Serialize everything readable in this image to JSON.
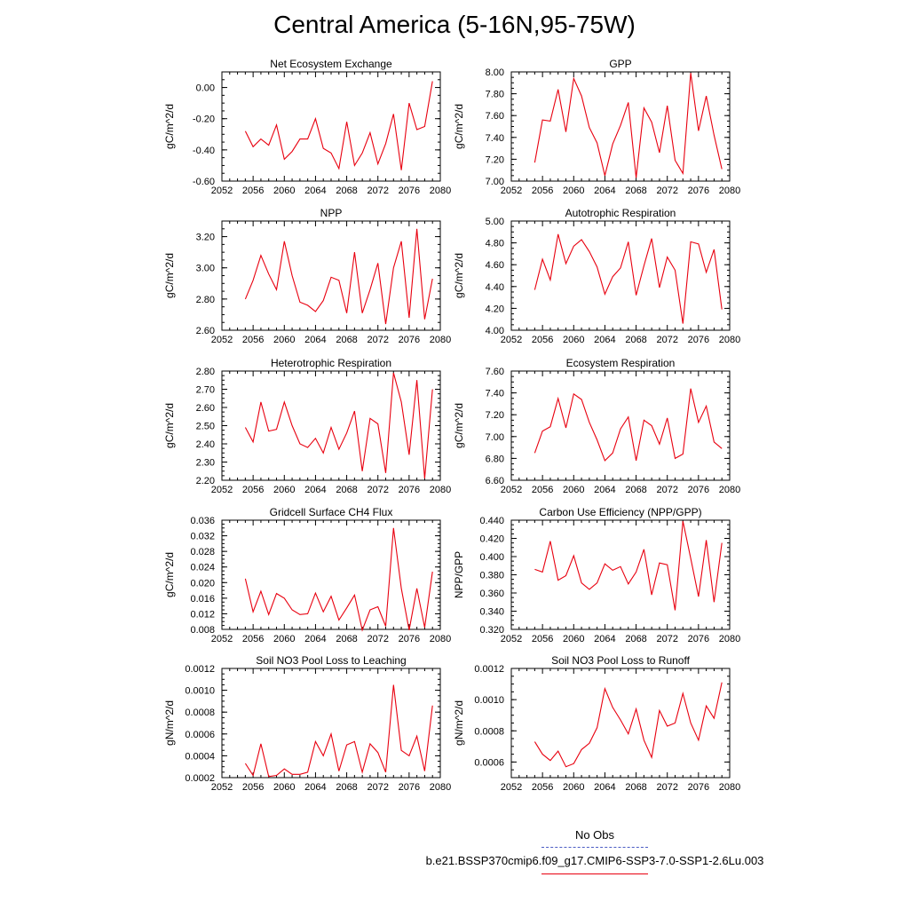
{
  "title": "Central America (5-16N,95-75W)",
  "line_color": "#e8000f",
  "obs_color": "#4b5cc4",
  "legend": {
    "obs_label": "No Obs",
    "run_label": "b.e21.BSSP370cmip6.f09_g17.CMIP6-SSP3-7.0-SSP1-2.6Lu.003"
  },
  "chart_data": [
    {
      "type": "line",
      "title": "Net Ecosystem Exchange",
      "ylabel": "gC/m^2/d",
      "xlim": [
        2052,
        2080
      ],
      "xticks": [
        2052,
        2056,
        2060,
        2064,
        2068,
        2072,
        2076,
        2080
      ],
      "ylim": [
        -0.6,
        0.1
      ],
      "yticks": [
        -0.6,
        -0.4,
        -0.2,
        0.0
      ],
      "ydec": 2,
      "x": [
        2055,
        2056,
        2057,
        2058,
        2059,
        2060,
        2061,
        2062,
        2063,
        2064,
        2065,
        2066,
        2067,
        2068,
        2069,
        2070,
        2071,
        2072,
        2073,
        2074,
        2075,
        2076,
        2077,
        2078,
        2079
      ],
      "y": [
        -0.28,
        -0.38,
        -0.33,
        -0.37,
        -0.24,
        -0.46,
        -0.41,
        -0.33,
        -0.33,
        -0.2,
        -0.39,
        -0.42,
        -0.52,
        -0.22,
        -0.5,
        -0.42,
        -0.29,
        -0.49,
        -0.36,
        -0.17,
        -0.53,
        -0.1,
        -0.27,
        -0.25,
        0.04
      ]
    },
    {
      "type": "line",
      "title": "GPP",
      "ylabel": "gC/m^2/d",
      "xlim": [
        2052,
        2080
      ],
      "xticks": [
        2052,
        2056,
        2060,
        2064,
        2068,
        2072,
        2076,
        2080
      ],
      "ylim": [
        7.0,
        8.0
      ],
      "yticks": [
        7.0,
        7.2,
        7.4,
        7.6,
        7.8,
        8.0
      ],
      "ydec": 2,
      "x": [
        2055,
        2056,
        2057,
        2058,
        2059,
        2060,
        2061,
        2062,
        2063,
        2064,
        2065,
        2066,
        2067,
        2068,
        2069,
        2070,
        2071,
        2072,
        2073,
        2074,
        2075,
        2076,
        2077,
        2078,
        2079
      ],
      "y": [
        7.17,
        7.56,
        7.55,
        7.84,
        7.45,
        7.94,
        7.78,
        7.49,
        7.35,
        7.05,
        7.34,
        7.51,
        7.72,
        7.03,
        7.67,
        7.54,
        7.26,
        7.69,
        7.19,
        7.07,
        7.99,
        7.46,
        7.78,
        7.42,
        7.11
      ]
    },
    {
      "type": "line",
      "title": "NPP",
      "ylabel": "gC/m^2/d",
      "xlim": [
        2052,
        2080
      ],
      "xticks": [
        2052,
        2056,
        2060,
        2064,
        2068,
        2072,
        2076,
        2080
      ],
      "ylim": [
        2.6,
        3.3
      ],
      "yticks": [
        2.6,
        2.8,
        3.0,
        3.2
      ],
      "ydec": 2,
      "x": [
        2055,
        2056,
        2057,
        2058,
        2059,
        2060,
        2061,
        2062,
        2063,
        2064,
        2065,
        2066,
        2067,
        2068,
        2069,
        2070,
        2071,
        2072,
        2073,
        2074,
        2075,
        2076,
        2077,
        2078,
        2079
      ],
      "y": [
        2.8,
        2.92,
        3.08,
        2.96,
        2.86,
        3.17,
        2.95,
        2.78,
        2.76,
        2.72,
        2.79,
        2.94,
        2.92,
        2.71,
        3.1,
        2.71,
        2.86,
        3.03,
        2.64,
        3.0,
        3.17,
        2.68,
        3.25,
        2.67,
        2.93
      ]
    },
    {
      "type": "line",
      "title": "Autotrophic Respiration",
      "ylabel": "gC/m^2/d",
      "xlim": [
        2052,
        2080
      ],
      "xticks": [
        2052,
        2056,
        2060,
        2064,
        2068,
        2072,
        2076,
        2080
      ],
      "ylim": [
        4.0,
        5.0
      ],
      "yticks": [
        4.0,
        4.2,
        4.4,
        4.6,
        4.8,
        5.0
      ],
      "ydec": 2,
      "x": [
        2055,
        2056,
        2057,
        2058,
        2059,
        2060,
        2061,
        2062,
        2063,
        2064,
        2065,
        2066,
        2067,
        2068,
        2069,
        2070,
        2071,
        2072,
        2073,
        2074,
        2075,
        2076,
        2077,
        2078,
        2079
      ],
      "y": [
        4.37,
        4.65,
        4.46,
        4.88,
        4.61,
        4.77,
        4.83,
        4.72,
        4.58,
        4.33,
        4.49,
        4.57,
        4.81,
        4.32,
        4.59,
        4.84,
        4.39,
        4.67,
        4.55,
        4.06,
        4.81,
        4.79,
        4.53,
        4.74,
        4.19
      ]
    },
    {
      "type": "line",
      "title": "Heterotrophic Respiration",
      "ylabel": "gC/m^2/d",
      "xlim": [
        2052,
        2080
      ],
      "xticks": [
        2052,
        2056,
        2060,
        2064,
        2068,
        2072,
        2076,
        2080
      ],
      "ylim": [
        2.2,
        2.8
      ],
      "yticks": [
        2.2,
        2.3,
        2.4,
        2.5,
        2.6,
        2.7,
        2.8
      ],
      "ydec": 2,
      "x": [
        2055,
        2056,
        2057,
        2058,
        2059,
        2060,
        2061,
        2062,
        2063,
        2064,
        2065,
        2066,
        2067,
        2068,
        2069,
        2070,
        2071,
        2072,
        2073,
        2074,
        2075,
        2076,
        2077,
        2078,
        2079
      ],
      "y": [
        2.49,
        2.41,
        2.63,
        2.47,
        2.48,
        2.63,
        2.5,
        2.4,
        2.38,
        2.43,
        2.35,
        2.49,
        2.37,
        2.46,
        2.58,
        2.25,
        2.54,
        2.51,
        2.24,
        2.79,
        2.63,
        2.34,
        2.75,
        2.21,
        2.7
      ]
    },
    {
      "type": "line",
      "title": "Ecosystem Respiration",
      "ylabel": "gC/m^2/d",
      "xlim": [
        2052,
        2080
      ],
      "xticks": [
        2052,
        2056,
        2060,
        2064,
        2068,
        2072,
        2076,
        2080
      ],
      "ylim": [
        6.6,
        7.6
      ],
      "yticks": [
        6.6,
        6.8,
        7.0,
        7.2,
        7.4,
        7.6
      ],
      "ydec": 2,
      "x": [
        2055,
        2056,
        2057,
        2058,
        2059,
        2060,
        2061,
        2062,
        2063,
        2064,
        2065,
        2066,
        2067,
        2068,
        2069,
        2070,
        2071,
        2072,
        2073,
        2074,
        2075,
        2076,
        2077,
        2078,
        2079
      ],
      "y": [
        6.85,
        7.05,
        7.09,
        7.35,
        7.08,
        7.39,
        7.34,
        7.13,
        6.97,
        6.78,
        6.85,
        7.07,
        7.18,
        6.78,
        7.15,
        7.1,
        6.93,
        7.17,
        6.8,
        6.84,
        7.44,
        7.13,
        7.28,
        6.95,
        6.89
      ]
    },
    {
      "type": "line",
      "title": "Gridcell Surface CH4 Flux",
      "ylabel": "gC/m^2/d",
      "xlim": [
        2052,
        2080
      ],
      "xticks": [
        2052,
        2056,
        2060,
        2064,
        2068,
        2072,
        2076,
        2080
      ],
      "ylim": [
        0.008,
        0.036
      ],
      "yticks": [
        0.008,
        0.012,
        0.016,
        0.02,
        0.024,
        0.028,
        0.032,
        0.036
      ],
      "ydec": 3,
      "x": [
        2055,
        2056,
        2057,
        2058,
        2059,
        2060,
        2061,
        2062,
        2063,
        2064,
        2065,
        2066,
        2067,
        2068,
        2069,
        2070,
        2071,
        2072,
        2073,
        2074,
        2075,
        2076,
        2077,
        2078,
        2079
      ],
      "y": [
        0.021,
        0.0125,
        0.0178,
        0.0118,
        0.0172,
        0.016,
        0.013,
        0.0118,
        0.012,
        0.0173,
        0.0125,
        0.0165,
        0.0104,
        0.0135,
        0.0168,
        0.0078,
        0.013,
        0.0138,
        0.0088,
        0.034,
        0.0185,
        0.0078,
        0.0185,
        0.0085,
        0.0228
      ]
    },
    {
      "type": "line",
      "title": "Carbon Use Efficiency (NPP/GPP)",
      "ylabel": "NPP/GPP",
      "xlim": [
        2052,
        2080
      ],
      "xticks": [
        2052,
        2056,
        2060,
        2064,
        2068,
        2072,
        2076,
        2080
      ],
      "ylim": [
        0.32,
        0.44
      ],
      "yticks": [
        0.32,
        0.34,
        0.36,
        0.38,
        0.4,
        0.42,
        0.44
      ],
      "ydec": 3,
      "x": [
        2055,
        2056,
        2057,
        2058,
        2059,
        2060,
        2061,
        2062,
        2063,
        2064,
        2065,
        2066,
        2067,
        2068,
        2069,
        2070,
        2071,
        2072,
        2073,
        2074,
        2075,
        2076,
        2077,
        2078,
        2079
      ],
      "y": [
        0.386,
        0.383,
        0.417,
        0.374,
        0.379,
        0.401,
        0.371,
        0.364,
        0.371,
        0.392,
        0.385,
        0.389,
        0.37,
        0.383,
        0.408,
        0.358,
        0.393,
        0.391,
        0.341,
        0.439,
        0.398,
        0.356,
        0.418,
        0.35,
        0.415
      ]
    },
    {
      "type": "line",
      "title": "Soil NO3 Pool Loss to Leaching",
      "ylabel": "gN/m^2/d",
      "xlim": [
        2052,
        2080
      ],
      "xticks": [
        2052,
        2056,
        2060,
        2064,
        2068,
        2072,
        2076,
        2080
      ],
      "ylim": [
        0.0002,
        0.0012
      ],
      "yticks": [
        0.0002,
        0.0004,
        0.0006,
        0.0008,
        0.001,
        0.0012
      ],
      "ydec": 4,
      "x": [
        2055,
        2056,
        2057,
        2058,
        2059,
        2060,
        2061,
        2062,
        2063,
        2064,
        2065,
        2066,
        2067,
        2068,
        2069,
        2070,
        2071,
        2072,
        2073,
        2074,
        2075,
        2076,
        2077,
        2078,
        2079
      ],
      "y": [
        0.00033,
        0.00022,
        0.00051,
        0.00021,
        0.00022,
        0.00028,
        0.00023,
        0.00023,
        0.00025,
        0.00053,
        0.0004,
        0.0006,
        0.00026,
        0.0005,
        0.00053,
        0.00025,
        0.00051,
        0.00043,
        0.00025,
        0.00105,
        0.00045,
        0.0004,
        0.00058,
        0.00026,
        0.00086
      ]
    },
    {
      "type": "line",
      "title": "Soil NO3 Pool Loss to Runoff",
      "ylabel": "gN/m^2/d",
      "xlim": [
        2052,
        2080
      ],
      "xticks": [
        2052,
        2056,
        2060,
        2064,
        2068,
        2072,
        2076,
        2080
      ],
      "ylim": [
        0.0005,
        0.0012
      ],
      "yticks": [
        0.0006,
        0.0008,
        0.001,
        0.0012
      ],
      "ydec": 4,
      "x": [
        2055,
        2056,
        2057,
        2058,
        2059,
        2060,
        2061,
        2062,
        2063,
        2064,
        2065,
        2066,
        2067,
        2068,
        2069,
        2070,
        2071,
        2072,
        2073,
        2074,
        2075,
        2076,
        2077,
        2078,
        2079
      ],
      "y": [
        0.00073,
        0.00065,
        0.00061,
        0.00067,
        0.00057,
        0.00059,
        0.00068,
        0.00072,
        0.00082,
        0.00107,
        0.00095,
        0.00087,
        0.00078,
        0.00094,
        0.00074,
        0.00063,
        0.00093,
        0.00083,
        0.00085,
        0.00104,
        0.00085,
        0.00074,
        0.00096,
        0.00088,
        0.00111
      ]
    }
  ]
}
